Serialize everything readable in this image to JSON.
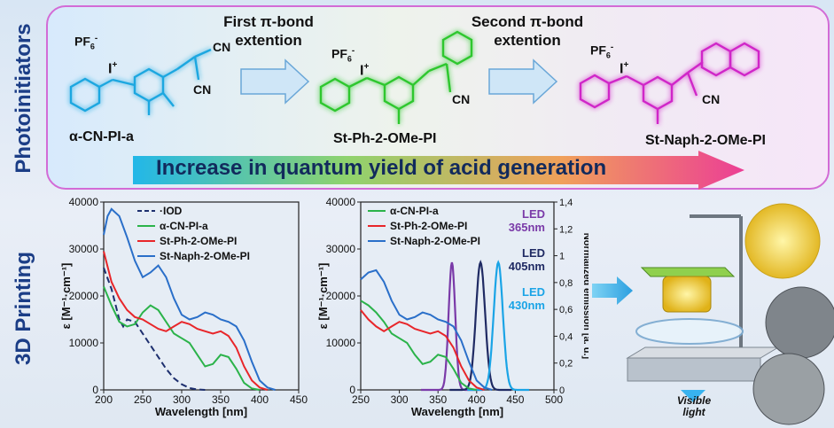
{
  "sections": {
    "top": "Photoinitiators",
    "bottom": "3D Printing"
  },
  "molecules": {
    "m1": {
      "name": "α-CN-PI-a",
      "anion": "PF",
      "anion_sub": "6",
      "anion_sup": "-",
      "plus": "+",
      "cn1": "CN",
      "cn2": "CN",
      "iodine": "I"
    },
    "m2": {
      "name": "St-Ph-2-OMe-PI",
      "anion": "PF",
      "anion_sub": "6",
      "anion_sup": "-",
      "plus": "+",
      "cn": "CN",
      "iodine": "I"
    },
    "m3": {
      "name": "St-Naph-2-OMe-PI",
      "anion": "PF",
      "anion_sub": "6",
      "anion_sup": "-",
      "plus": "+",
      "cn": "CN",
      "iodine": "I"
    }
  },
  "steps": {
    "first_line1": "First π-bond",
    "first_line2": "extention",
    "second_line1": "Second π-bond",
    "second_line2": "extention"
  },
  "banner": "Increase in quantum yield of acid generation",
  "printer": {
    "light_label_1": "Visible",
    "light_label_2": "light"
  },
  "colors": {
    "m1": "#1ea7e0",
    "m2": "#2ec72e",
    "m3": "#d026c8",
    "iod": "#1d2f6e",
    "red": "#e8262a",
    "green": "#2bb34a",
    "blue": "#2a6fc9",
    "purple": "#7a3aa8",
    "navy": "#1f2a63",
    "cyan": "#1aa4e6"
  },
  "chart_data": [
    {
      "type": "line",
      "xlabel": "Wavelength [nm]",
      "ylabel": "ε [M⁻¹·cm⁻¹]",
      "xlim": [
        200,
        450
      ],
      "ylim": [
        0,
        40000
      ],
      "xticks": [
        200,
        250,
        300,
        350,
        400,
        450
      ],
      "yticks": [
        0,
        10000,
        20000,
        30000,
        40000
      ],
      "legend_position": "top-right",
      "series": [
        {
          "name": "·IOD",
          "color": "#1d2f6e",
          "dashed": true,
          "x": [
            200,
            210,
            220,
            225,
            230,
            240,
            250,
            260,
            270,
            280,
            290,
            300,
            310,
            320,
            330
          ],
          "y": [
            26000,
            21500,
            15000,
            13500,
            15000,
            14500,
            12000,
            9500,
            7000,
            4500,
            2500,
            1200,
            400,
            100,
            0
          ]
        },
        {
          "name": "α-CN-PI-a",
          "color": "#2bb34a",
          "dashed": false,
          "x": [
            200,
            210,
            220,
            230,
            240,
            250,
            260,
            270,
            280,
            290,
            300,
            310,
            320,
            330,
            340,
            350,
            360,
            370,
            380,
            390,
            400
          ],
          "y": [
            22000,
            18000,
            14500,
            13500,
            14000,
            16500,
            18000,
            17000,
            14500,
            12000,
            11000,
            10000,
            7500,
            5000,
            5500,
            7500,
            7000,
            4500,
            1500,
            300,
            0
          ]
        },
        {
          "name": "St-Ph-2-OMe-PI",
          "color": "#e8262a",
          "dashed": false,
          "x": [
            200,
            210,
            220,
            230,
            240,
            250,
            260,
            270,
            280,
            290,
            300,
            310,
            320,
            330,
            340,
            350,
            360,
            370,
            380,
            390,
            400,
            410
          ],
          "y": [
            29500,
            23000,
            19500,
            17000,
            15500,
            15000,
            14000,
            13000,
            12500,
            13500,
            14500,
            14000,
            13000,
            12500,
            12000,
            12500,
            11500,
            9000,
            5000,
            2000,
            500,
            0
          ]
        },
        {
          "name": "St-Naph-2-OMe-PI",
          "color": "#2a6fc9",
          "dashed": false,
          "x": [
            200,
            205,
            210,
            220,
            230,
            240,
            250,
            260,
            270,
            280,
            290,
            300,
            310,
            320,
            330,
            340,
            350,
            360,
            370,
            380,
            390,
            400,
            410,
            420
          ],
          "y": [
            33000,
            37000,
            38500,
            37000,
            32500,
            27500,
            24000,
            25000,
            26500,
            24000,
            19500,
            16000,
            15000,
            15500,
            16500,
            16000,
            15000,
            14500,
            13500,
            10500,
            6000,
            2000,
            500,
            0
          ]
        }
      ]
    },
    {
      "type": "line",
      "xlabel": "Wavelength [nm]",
      "ylabel": "ε [M⁻¹·cm⁻¹]",
      "y2label": "Normalized emission [a. u.]",
      "xlim": [
        250,
        500
      ],
      "ylim": [
        0,
        40000
      ],
      "y2lim": [
        0,
        1.4
      ],
      "xticks": [
        250,
        300,
        350,
        400,
        450,
        500
      ],
      "yticks": [
        0,
        10000,
        20000,
        30000,
        40000
      ],
      "y2ticks": [
        0,
        0.2,
        0.4,
        0.6,
        0.8,
        1,
        1.2,
        1.4
      ],
      "legend_position": "top-left",
      "series": [
        {
          "name": "α-CN-PI-a",
          "color": "#2bb34a",
          "axis": "left",
          "x": [
            250,
            260,
            270,
            280,
            290,
            300,
            310,
            320,
            330,
            340,
            350,
            360,
            370,
            380,
            390,
            400
          ],
          "y": [
            19000,
            18000,
            16500,
            14500,
            12000,
            11000,
            10000,
            7500,
            5500,
            6000,
            7500,
            7000,
            4500,
            1500,
            300,
            0
          ]
        },
        {
          "name": "St-Ph-2-OMe-PI",
          "color": "#e8262a",
          "axis": "left",
          "x": [
            250,
            260,
            270,
            280,
            290,
            300,
            310,
            320,
            330,
            340,
            350,
            360,
            370,
            380,
            390,
            400,
            410
          ],
          "y": [
            17000,
            15000,
            13500,
            12500,
            13500,
            14500,
            14000,
            13000,
            12500,
            12000,
            12500,
            11500,
            9000,
            5000,
            2000,
            500,
            0
          ]
        },
        {
          "name": "St-Naph-2-OMe-PI",
          "color": "#2a6fc9",
          "axis": "left",
          "x": [
            250,
            260,
            270,
            280,
            290,
            300,
            310,
            320,
            330,
            340,
            350,
            360,
            370,
            380,
            390,
            400,
            410,
            420
          ],
          "y": [
            23500,
            25000,
            25500,
            23000,
            19000,
            16000,
            15000,
            15500,
            16500,
            16000,
            15000,
            14500,
            13500,
            10500,
            6000,
            2000,
            500,
            0
          ]
        }
      ],
      "emission": [
        {
          "name": "LED 365nm",
          "label_line1": "LED",
          "label_line2": "365nm",
          "color": "#7a3aa8",
          "peak": 368,
          "fwhm": 10,
          "max": 0.95
        },
        {
          "name": "LED 405nm",
          "label_line1": "LED",
          "label_line2": "405nm",
          "color": "#1f2a63",
          "peak": 405,
          "fwhm": 14,
          "max": 0.95
        },
        {
          "name": "LED 430nm",
          "label_line1": "LED",
          "label_line2": "430nm",
          "color": "#1aa4e6",
          "peak": 428,
          "fwhm": 14,
          "max": 0.95
        }
      ]
    }
  ]
}
